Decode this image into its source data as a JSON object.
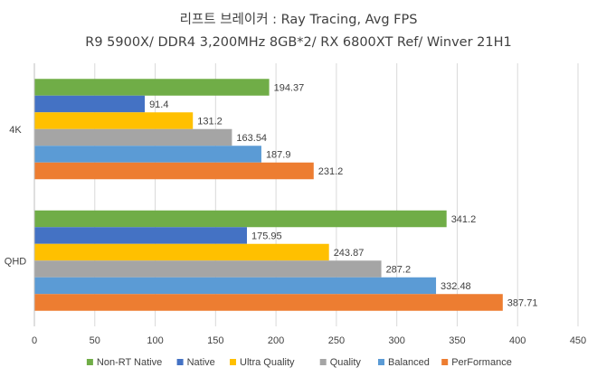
{
  "chart_data": {
    "type": "bar",
    "orientation": "horizontal",
    "title": "리프트 브레이커 : Ray Tracing, Avg FPS",
    "subtitle": "R9 5900X/ DDR4 3,200MHz 8GB*2/ RX 6800XT Ref/ Winver 21H1",
    "categories": [
      "4K",
      "QHD"
    ],
    "series": [
      {
        "name": "Non-RT Native",
        "color": "#70ad47",
        "values": [
          194.37,
          341.2
        ],
        "labels": [
          "194.37",
          "341.2"
        ]
      },
      {
        "name": "Native",
        "color": "#4472c4",
        "values": [
          91.4,
          175.95
        ],
        "labels": [
          "91.4",
          "175.95"
        ]
      },
      {
        "name": "Ultra Quality",
        "color": "#ffc000",
        "values": [
          131.2,
          243.87
        ],
        "labels": [
          "131.2",
          "243.87"
        ]
      },
      {
        "name": "Quality",
        "color": "#a5a5a5",
        "values": [
          163.54,
          287.2
        ],
        "labels": [
          "163.54",
          "287.2"
        ]
      },
      {
        "name": "Balanced",
        "color": "#5b9bd5",
        "values": [
          187.9,
          332.48
        ],
        "labels": [
          "187.9",
          "332.48"
        ]
      },
      {
        "name": "PerFormance",
        "color": "#ed7d31",
        "values": [
          231.2,
          387.71
        ],
        "labels": [
          "231.2",
          "387.71"
        ]
      }
    ],
    "xlim": [
      0,
      450
    ],
    "xticks": [
      "0",
      "50",
      "100",
      "150",
      "200",
      "250",
      "300",
      "350",
      "400",
      "450"
    ],
    "xlabel": "",
    "ylabel": "",
    "grid": true,
    "legend_position": "bottom"
  }
}
